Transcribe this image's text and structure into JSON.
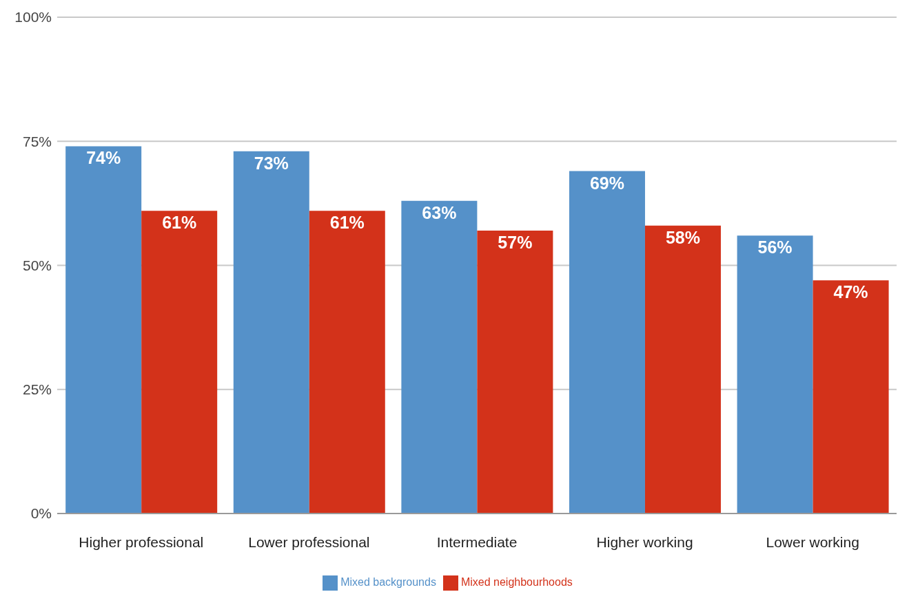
{
  "chart_data": {
    "type": "bar",
    "categories": [
      "Higher professional",
      "Lower professional",
      "Intermediate",
      "Higher working",
      "Lower working"
    ],
    "series": [
      {
        "name": "Mixed backgrounds",
        "color": "#5591c9",
        "values": [
          74,
          73,
          63,
          69,
          56
        ],
        "value_labels": [
          "74%",
          "73%",
          "63%",
          "69%",
          "56%"
        ]
      },
      {
        "name": "Mixed neighbourhoods",
        "color": "#d3321a",
        "values": [
          61,
          61,
          57,
          58,
          47
        ],
        "value_labels": [
          "61%",
          "61%",
          "57%",
          "58%",
          "47%"
        ]
      }
    ],
    "ylim": [
      0,
      100
    ],
    "yticks": [
      {
        "value": 0,
        "label": "0%"
      },
      {
        "value": 25,
        "label": "25%"
      },
      {
        "value": 50,
        "label": "50%"
      },
      {
        "value": 75,
        "label": "75%"
      },
      {
        "value": 100,
        "label": "100%"
      }
    ],
    "grid": "y",
    "legend": "bottom"
  }
}
